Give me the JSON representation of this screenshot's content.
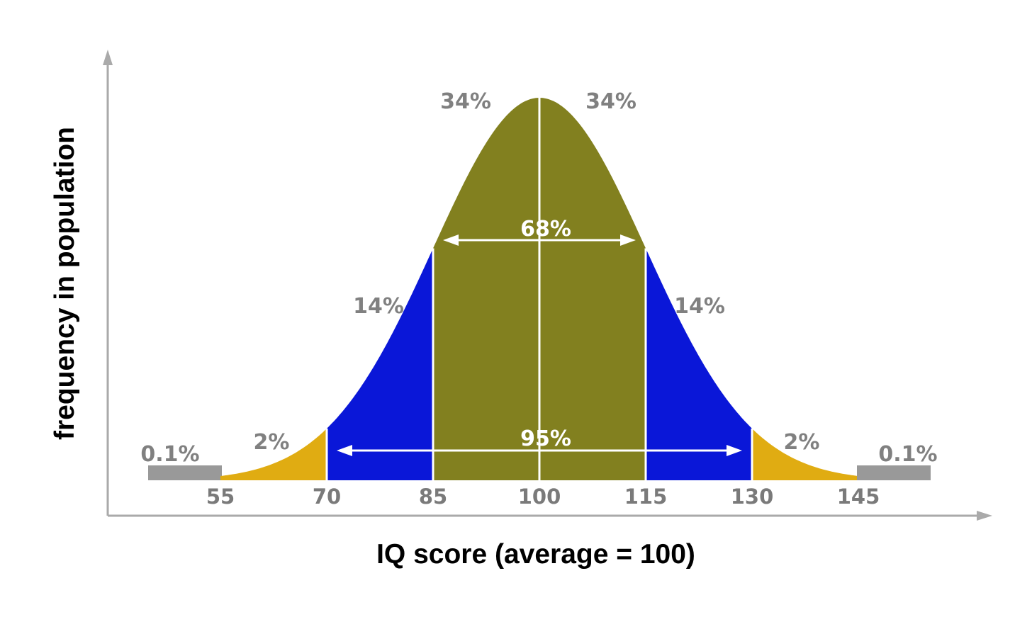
{
  "chart_data": {
    "type": "area",
    "xlabel": "IQ score (average = 100)",
    "ylabel": "frequency in population",
    "mean": 100,
    "sd": 15,
    "ticks": [
      55,
      70,
      85,
      100,
      115,
      130,
      145
    ],
    "tick_labels": [
      "55",
      "70",
      "85",
      "100",
      "115",
      "130",
      "145"
    ],
    "bands": [
      {
        "from": 45,
        "to": 55,
        "color": "#999999",
        "label": "0.1%",
        "style": "bar"
      },
      {
        "from": 55,
        "to": 70,
        "color": "#e0ac12",
        "label": "2%",
        "style": "curve"
      },
      {
        "from": 70,
        "to": 85,
        "color": "#0a17d8",
        "label": "14%",
        "style": "curve"
      },
      {
        "from": 85,
        "to": 100,
        "color": "#82801f",
        "label": "34%",
        "style": "curve"
      },
      {
        "from": 100,
        "to": 115,
        "color": "#82801f",
        "label": "34%",
        "style": "curve"
      },
      {
        "from": 115,
        "to": 130,
        "color": "#0a17d8",
        "label": "14%",
        "style": "curve"
      },
      {
        "from": 130,
        "to": 145,
        "color": "#e0ac12",
        "label": "2%",
        "style": "curve"
      },
      {
        "from": 145,
        "to": 155,
        "color": "#999999",
        "label": "0.1%",
        "style": "bar"
      }
    ],
    "annotations": [
      {
        "label": "68%",
        "from": 85,
        "to": 115
      },
      {
        "label": "95%",
        "from": 70,
        "to": 130
      }
    ],
    "colors": {
      "axis": "#aaaaaa",
      "divider": "#ffffff",
      "pct_text": "#808080",
      "inner_text": "#ffffff"
    }
  }
}
